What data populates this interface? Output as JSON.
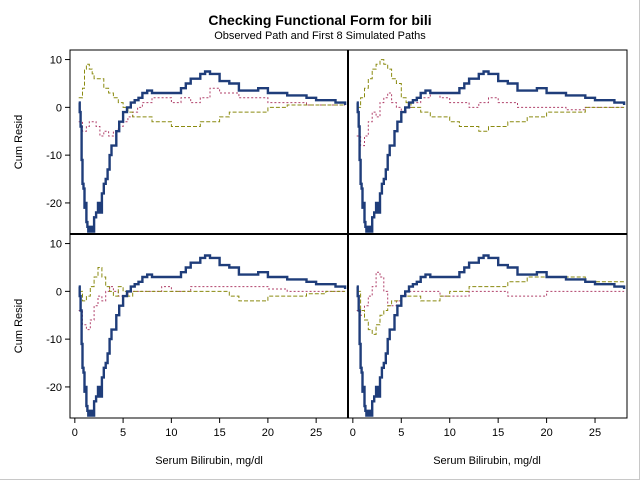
{
  "chart_data": {
    "type": "line",
    "layout": "2x2 panels",
    "title": "Checking Functional Form for bili",
    "subtitle": "Observed Path and First 8 Simulated Paths",
    "xlabel": "Serum Bilirubin, mg/dl",
    "ylabel": "Cum Resid",
    "xticks": [
      "0",
      "5",
      "10",
      "15",
      "20",
      "25"
    ],
    "yticks": [
      "10",
      "0",
      "-10",
      "-20"
    ],
    "xlim": [
      -0.5,
      28.3
    ],
    "ylim": [
      -26.5,
      12
    ],
    "grid": false,
    "colors": {
      "observed": "#1f3d7a",
      "sim_red": "#b0406a",
      "sim_olive": "#8a8a10"
    },
    "observed": {
      "x": [
        0.4,
        0.5,
        0.6,
        0.7,
        0.8,
        0.9,
        1.0,
        1.1,
        1.2,
        1.3,
        1.4,
        1.6,
        1.8,
        2.0,
        2.2,
        2.4,
        2.6,
        2.8,
        3.0,
        3.2,
        3.4,
        3.6,
        3.8,
        4.0,
        4.3,
        4.6,
        5.0,
        5.4,
        5.8,
        6.2,
        6.6,
        7.0,
        7.5,
        8.0,
        9.0,
        10.0,
        11.0,
        11.5,
        12.0,
        12.5,
        13.0,
        13.5,
        14.0,
        14.5,
        15.0,
        16.0,
        17.0,
        18.0,
        19.0,
        20.0,
        21.0,
        22.0,
        23.0,
        24.0,
        25.0,
        26.0,
        27.0,
        28.0
      ],
      "y": [
        1,
        -1,
        -4,
        -11,
        -16,
        -17,
        -21,
        -20,
        -24,
        -25,
        -26,
        -25,
        -26,
        -23,
        -22,
        -20,
        -22,
        -18,
        -16,
        -15,
        -13,
        -10,
        -8,
        -8,
        -5,
        -3,
        -1,
        0,
        1,
        1.5,
        2,
        3,
        3.5,
        3,
        3,
        3,
        4,
        5,
        6,
        6,
        7,
        7.5,
        7,
        7,
        5.5,
        5,
        3.5,
        3.5,
        4,
        3,
        3,
        2.5,
        2.5,
        2,
        1.5,
        1.5,
        1,
        0.5
      ]
    },
    "panels": [
      {
        "sim_red": {
          "x": [
            0.4,
            0.8,
            1.0,
            1.2,
            1.5,
            1.8,
            2.2,
            2.6,
            3.0,
            3.5,
            4.0,
            4.5,
            5.0,
            5.5,
            6.0,
            6.5,
            7.0,
            8.0,
            9.0,
            10.0,
            11.0,
            12.0,
            13.0,
            14.0,
            15.0,
            16.0,
            17.0,
            18.0,
            20.0,
            22.0,
            24.0,
            26.0,
            28.0
          ],
          "y": [
            -3,
            -5,
            -5,
            -4,
            -3,
            -3,
            -4,
            -6,
            -5,
            -6,
            -5,
            -4,
            -3,
            -2,
            -1,
            0,
            1,
            2,
            2,
            1,
            2,
            1,
            2,
            4,
            3,
            3,
            2,
            2,
            1,
            1,
            0.5,
            0.5,
            0.5
          ]
        },
        "sim_olive": {
          "x": [
            0.4,
            0.8,
            1.0,
            1.2,
            1.5,
            1.8,
            2.0,
            2.5,
            3.0,
            3.5,
            4.0,
            4.5,
            5.0,
            5.5,
            6.0,
            7.0,
            8.0,
            9.0,
            10.0,
            11.0,
            12.0,
            13.0,
            14.0,
            15.0,
            16.0,
            17.0,
            18.0,
            20.0,
            22.0,
            24.0,
            26.0,
            28.0
          ],
          "y": [
            2,
            4,
            8,
            9,
            8,
            7,
            6,
            6,
            4,
            3,
            2,
            1,
            0,
            -1,
            -2,
            -2,
            -3,
            -3,
            -4,
            -4,
            -4,
            -3,
            -3,
            -2,
            -1,
            -1,
            -1,
            0,
            0.5,
            0.5,
            0.5,
            0.5
          ]
        }
      },
      {
        "sim_red": {
          "x": [
            0.4,
            0.8,
            1.2,
            1.6,
            2.0,
            2.4,
            2.8,
            3.2,
            3.6,
            4.0,
            4.5,
            5.0,
            5.5,
            6.0,
            7.0,
            8.0,
            9.0,
            10.0,
            11.0,
            12.0,
            13.0,
            14.0,
            15.0,
            16.0,
            17.0,
            18.0,
            20.0,
            22.0,
            24.0,
            26.0,
            28.0
          ],
          "y": [
            -6,
            -8,
            -6,
            -3,
            -1,
            -2,
            1,
            2,
            3,
            1,
            0,
            -1,
            0,
            1,
            2,
            3,
            2,
            1,
            1,
            0,
            1,
            2,
            1,
            1,
            0,
            0,
            0,
            -0.5,
            0,
            0,
            0
          ]
        },
        "sim_olive": {
          "x": [
            0.4,
            0.8,
            1.2,
            1.6,
            2.0,
            2.4,
            2.8,
            3.2,
            3.6,
            4.0,
            4.5,
            5.0,
            5.5,
            6.0,
            7.0,
            8.0,
            9.0,
            10.0,
            11.0,
            12.0,
            13.0,
            14.0,
            15.0,
            16.0,
            17.0,
            18.0,
            20.0,
            22.0,
            24.0,
            26.0,
            28.0
          ],
          "y": [
            0,
            2,
            4,
            6,
            8,
            9,
            10,
            9,
            8,
            6,
            5,
            2,
            1,
            0,
            -1,
            -2,
            -2,
            -3,
            -4,
            -4,
            -5,
            -4,
            -4,
            -3,
            -3,
            -2,
            -1,
            -1,
            0,
            0,
            0
          ]
        }
      },
      {
        "sim_red": {
          "x": [
            0.4,
            0.8,
            1.2,
            1.6,
            2.0,
            2.4,
            2.8,
            3.2,
            3.6,
            4.0,
            4.5,
            5.0,
            5.5,
            6.0,
            7.0,
            8.0,
            9.0,
            10.0,
            11.0,
            12.0,
            14.0,
            16.0,
            18.0,
            20.0,
            22.0,
            24.0,
            26.0,
            28.0
          ],
          "y": [
            -4,
            -7,
            -8,
            -6,
            -3,
            -1,
            -2,
            0,
            1,
            0,
            -1,
            -1,
            0,
            0,
            0,
            0,
            1,
            0,
            0,
            1,
            1,
            1,
            1,
            0.5,
            0,
            0,
            0,
            0
          ]
        },
        "sim_olive": {
          "x": [
            0.4,
            0.8,
            1.2,
            1.6,
            2.0,
            2.4,
            2.8,
            3.2,
            3.6,
            4.0,
            4.5,
            5.0,
            5.5,
            6.0,
            7.0,
            8.0,
            9.0,
            10.0,
            12.0,
            14.0,
            16.0,
            17.0,
            18.0,
            20.0,
            22.0,
            24.0,
            26.0,
            28.0
          ],
          "y": [
            0,
            -2,
            -1,
            1,
            3,
            5,
            3,
            1,
            0,
            -1,
            1,
            0,
            -1,
            0,
            0,
            0,
            0,
            0,
            0,
            0,
            -1,
            -2,
            -2,
            -1,
            -1,
            -0.5,
            0,
            0
          ]
        }
      },
      {
        "sim_red": {
          "x": [
            0.4,
            0.8,
            1.2,
            1.6,
            2.0,
            2.4,
            2.8,
            3.2,
            3.6,
            4.0,
            4.5,
            5.0,
            5.5,
            6.0,
            7.0,
            8.0,
            9.0,
            10.0,
            12.0,
            14.0,
            16.0,
            17.0,
            18.0,
            20.0,
            22.0,
            24.0,
            26.0,
            28.0
          ],
          "y": [
            -4,
            -5,
            -3,
            -1,
            1,
            4,
            3,
            0,
            -3,
            -3,
            -2,
            -1,
            0,
            0,
            0,
            0,
            -1,
            -1,
            0,
            0,
            -1,
            -1,
            -1,
            0,
            0,
            0,
            0,
            0
          ]
        },
        "sim_olive": {
          "x": [
            0.4,
            0.8,
            1.2,
            1.6,
            2.0,
            2.4,
            2.8,
            3.2,
            3.6,
            4.0,
            4.5,
            5.0,
            5.5,
            6.0,
            7.0,
            8.0,
            9.0,
            10.0,
            12.0,
            14.0,
            16.0,
            17.0,
            18.0,
            20.0,
            22.0,
            24.0,
            26.0,
            28.0
          ],
          "y": [
            0,
            -4,
            -6,
            -8,
            -9,
            -7,
            -5,
            -4,
            -3,
            -2,
            -2,
            -1,
            -1,
            -1,
            -2,
            -2,
            -1,
            0,
            1,
            1,
            2,
            2,
            3,
            3,
            3,
            2,
            2,
            2
          ]
        }
      }
    ]
  }
}
